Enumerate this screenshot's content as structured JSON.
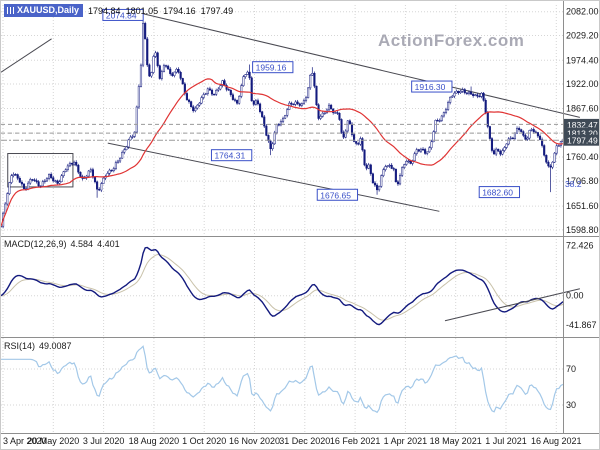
{
  "app": {
    "watermark": "ActionForex.com"
  },
  "quote_bar": {
    "symbol": "XAUUSD,Daily",
    "open": "1794.84",
    "high": "1801.05",
    "low": "1794.16",
    "close": "1797.49"
  },
  "indicators": {
    "macd": {
      "name": "MACD(12,26,9)",
      "value": "4.584",
      "signal": "4.401"
    },
    "rsi": {
      "name": "RSI(14)",
      "value": "49.0087"
    }
  },
  "colors": {
    "background": "#ffffff",
    "candle": "#131a7e",
    "candle_up_fill": "#ffffff",
    "ma_line": "#e03434",
    "macd_line": "#131a7e",
    "macd_signal": "#c9c2aa",
    "rsi_line": "#a3c8e8",
    "grid": "#d6d6d6",
    "axis_text": "#1a1a1a",
    "separator": "#8e8e8e",
    "level_line": "#9a9a9a",
    "level_label_bg": "#3f4a56",
    "level_label_text": "#ffffff",
    "annotation": "#3a50c8",
    "trendline": "#4a4a52",
    "watermark": "#b6b6c0",
    "badge_bg": "#4a63c8",
    "fib": "#3a50c8"
  },
  "chart_data": {
    "type": "candlestick",
    "symbol": "XAUUSD",
    "timeframe": "Daily",
    "x_axis": {
      "labels": [
        "3 Apr 2020",
        "20 May 2020",
        "3 Jul 2020",
        "18 Aug 2020",
        "1 Oct 2020",
        "16 Nov 2020",
        "31 Dec 2020",
        "16 Feb 2021",
        "1 Apr 2021",
        "18 May 2021",
        "1 Jul 2021",
        "16 Aug 2021"
      ]
    },
    "main": {
      "range": [
        1592,
        2088
      ],
      "ticks": [
        "2082.00",
        "2029.20",
        "1974.40",
        "1922.00",
        "1867.60",
        "1813.20",
        "1760.40",
        "1706.80",
        "1651.60",
        "1598.80"
      ],
      "tick_values": [
        2082.0,
        2029.2,
        1974.4,
        1922.0,
        1867.6,
        1813.2,
        1760.4,
        1706.8,
        1651.6,
        1598.8
      ],
      "levels": [
        {
          "price": 1832.47,
          "label": "1832.47",
          "current": false
        },
        {
          "price": 1813.2,
          "label": "1813.20",
          "current": false
        },
        {
          "price": 1797.49,
          "label": "1797.49",
          "current": true
        }
      ],
      "annotations": [
        {
          "f": 0.253,
          "price": 2074.84,
          "text": "2074.84",
          "gap": 0
        },
        {
          "f": 0.555,
          "price": 1959.16,
          "text": "1959.16",
          "gap": 20
        },
        {
          "f": 0.838,
          "price": 1916.3,
          "text": "1916.30",
          "gap": 20
        },
        {
          "f": 0.48,
          "price": 1764.31,
          "text": "1764.31",
          "gap": 19
        },
        {
          "f": 0.67,
          "price": 1676.65,
          "text": "1676.65",
          "gap": 20
        },
        {
          "f": 0.976,
          "price": 1682.6,
          "text": "1682.60",
          "gap": 30
        }
      ],
      "fib_label": {
        "text": "38.2",
        "price": 1701
      },
      "trendlines": [
        {
          "f1": 0.0,
          "p1": 1948,
          "f2": 0.09,
          "p2": 2022
        },
        {
          "f1": 0.251,
          "p1": 2078,
          "f2": 1.03,
          "p2": 1848
        },
        {
          "f1": 0.19,
          "p1": 1791,
          "f2": 0.78,
          "p2": 1640
        }
      ],
      "range_box": {
        "f1": 0.012,
        "f2": 0.128,
        "p1": 1768,
        "p2": 1694
      },
      "candle_count": 270,
      "ma_window": 34,
      "anchors": [
        [
          0.0,
          1607
        ],
        [
          0.008,
          1660
        ],
        [
          0.02,
          1728
        ],
        [
          0.032,
          1713
        ],
        [
          0.042,
          1685
        ],
        [
          0.055,
          1713
        ],
        [
          0.07,
          1698
        ],
        [
          0.085,
          1717
        ],
        [
          0.1,
          1702
        ],
        [
          0.115,
          1735
        ],
        [
          0.13,
          1748
        ],
        [
          0.145,
          1712
        ],
        [
          0.16,
          1730
        ],
        [
          0.172,
          1683
        ],
        [
          0.185,
          1722
        ],
        [
          0.2,
          1732
        ],
        [
          0.215,
          1768
        ],
        [
          0.228,
          1800
        ],
        [
          0.238,
          1812
        ],
        [
          0.244,
          1902
        ],
        [
          0.249,
          1962
        ],
        [
          0.253,
          2060
        ],
        [
          0.258,
          2012
        ],
        [
          0.262,
          1932
        ],
        [
          0.268,
          1950
        ],
        [
          0.273,
          2000
        ],
        [
          0.283,
          1932
        ],
        [
          0.292,
          1972
        ],
        [
          0.302,
          1942
        ],
        [
          0.315,
          1952
        ],
        [
          0.33,
          1892
        ],
        [
          0.344,
          1862
        ],
        [
          0.356,
          1886
        ],
        [
          0.368,
          1912
        ],
        [
          0.38,
          1900
        ],
        [
          0.394,
          1924
        ],
        [
          0.408,
          1902
        ],
        [
          0.42,
          1878
        ],
        [
          0.433,
          1942
        ],
        [
          0.441,
          1950
        ],
        [
          0.447,
          1878
        ],
        [
          0.456,
          1886
        ],
        [
          0.466,
          1838
        ],
        [
          0.474,
          1800
        ],
        [
          0.48,
          1776
        ],
        [
          0.49,
          1832
        ],
        [
          0.502,
          1842
        ],
        [
          0.514,
          1878
        ],
        [
          0.526,
          1882
        ],
        [
          0.536,
          1876
        ],
        [
          0.545,
          1898
        ],
        [
          0.551,
          1944
        ],
        [
          0.555,
          1950
        ],
        [
          0.56,
          1888
        ],
        [
          0.564,
          1850
        ],
        [
          0.574,
          1856
        ],
        [
          0.584,
          1870
        ],
        [
          0.594,
          1856
        ],
        [
          0.601,
          1860
        ],
        [
          0.608,
          1796
        ],
        [
          0.618,
          1842
        ],
        [
          0.628,
          1794
        ],
        [
          0.634,
          1784
        ],
        [
          0.639,
          1808
        ],
        [
          0.648,
          1736
        ],
        [
          0.654,
          1740
        ],
        [
          0.662,
          1702
        ],
        [
          0.67,
          1684
        ],
        [
          0.677,
          1722
        ],
        [
          0.684,
          1744
        ],
        [
          0.692,
          1738
        ],
        [
          0.699,
          1732
        ],
        [
          0.704,
          1688
        ],
        [
          0.711,
          1728
        ],
        [
          0.721,
          1756
        ],
        [
          0.729,
          1744
        ],
        [
          0.739,
          1772
        ],
        [
          0.748,
          1778
        ],
        [
          0.756,
          1772
        ],
        [
          0.763,
          1780
        ],
        [
          0.773,
          1836
        ],
        [
          0.783,
          1844
        ],
        [
          0.791,
          1868
        ],
        [
          0.801,
          1898
        ],
        [
          0.812,
          1902
        ],
        [
          0.822,
          1906
        ],
        [
          0.838,
          1902
        ],
        [
          0.846,
          1892
        ],
        [
          0.856,
          1898
        ],
        [
          0.862,
          1866
        ],
        [
          0.868,
          1812
        ],
        [
          0.876,
          1766
        ],
        [
          0.883,
          1778
        ],
        [
          0.89,
          1762
        ],
        [
          0.898,
          1788
        ],
        [
          0.906,
          1804
        ],
        [
          0.913,
          1808
        ],
        [
          0.92,
          1828
        ],
        [
          0.929,
          1804
        ],
        [
          0.936,
          1798
        ],
        [
          0.943,
          1828
        ],
        [
          0.951,
          1814
        ],
        [
          0.958,
          1806
        ],
        [
          0.966,
          1764
        ],
        [
          0.976,
          1730
        ],
        [
          0.981,
          1752
        ],
        [
          0.989,
          1786
        ],
        [
          1.0,
          1797.49
        ]
      ],
      "spike_highs": [
        {
          "f": 0.253,
          "price": 2074.84
        },
        {
          "f": 0.555,
          "price": 1959.16
        },
        {
          "f": 0.838,
          "price": 1916.3
        },
        {
          "f": 0.441,
          "price": 1965
        }
      ],
      "spike_lows": [
        {
          "f": 0.48,
          "price": 1764.31
        },
        {
          "f": 0.67,
          "price": 1676.65
        },
        {
          "f": 0.976,
          "price": 1682.6
        },
        {
          "f": 0.172,
          "price": 1670
        }
      ]
    },
    "macd": {
      "range": [
        -55,
        80
      ],
      "params": [
        12,
        26,
        9
      ],
      "axis_labels": [
        {
          "value": 72.426,
          "text": "72.426"
        },
        {
          "value": 0,
          "text": "0.00"
        },
        {
          "value": -41.867,
          "text": "-41.867"
        }
      ],
      "trendline": {
        "f1": 0.79,
        "v1": -36,
        "f2": 1.03,
        "v2": 10
      }
    },
    "rsi": {
      "range": [
        0,
        100
      ],
      "period": 14,
      "guides": [
        70,
        30
      ],
      "guide_labels": [
        "70",
        "30"
      ]
    }
  }
}
